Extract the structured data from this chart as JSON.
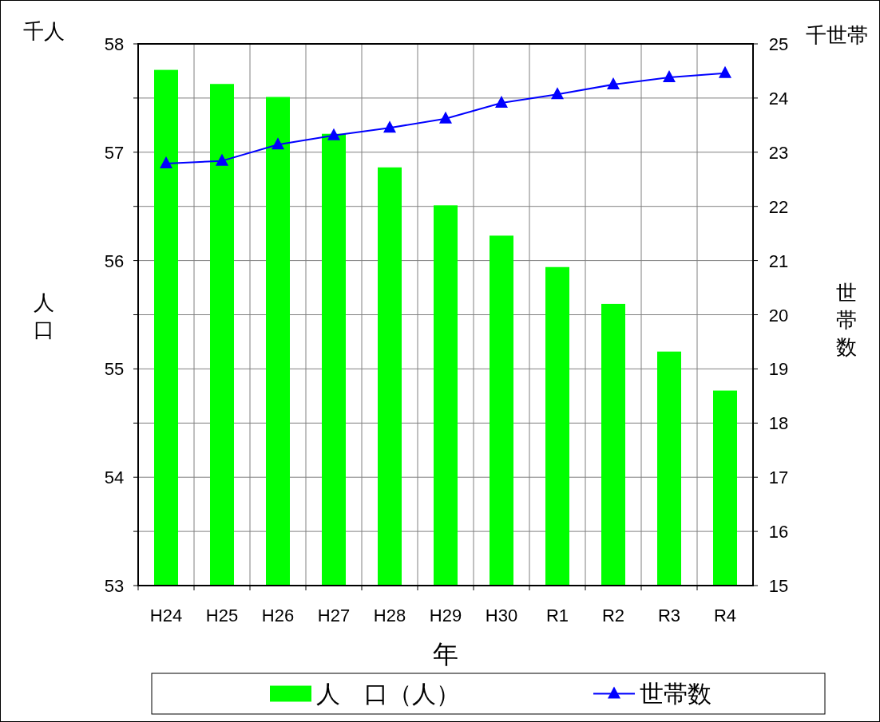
{
  "chart_data": {
    "type": "bar",
    "xlabel": "年",
    "ylabel": "人口",
    "y2label": "世帯数",
    "annotations": [
      "千人",
      "千世帯"
    ],
    "categories": [
      "H24",
      "H25",
      "H26",
      "H27",
      "H28",
      "H29",
      "H30",
      "R1",
      "R2",
      "R3",
      "R4"
    ],
    "series": [
      {
        "name": "人　口（人）",
        "color": "#00ff00",
        "values": [
          57.76,
          57.63,
          57.51,
          57.17,
          56.86,
          56.51,
          56.23,
          55.94,
          55.6,
          55.16,
          54.8
        ]
      },
      {
        "name": "世帯数",
        "type": "line",
        "axis": "y2",
        "color": "#0000ff",
        "marker": "triangle",
        "values": [
          22.79,
          22.84,
          23.14,
          23.31,
          23.45,
          23.62,
          23.91,
          24.07,
          24.25,
          24.38,
          24.46
        ]
      }
    ],
    "ylim": [
      53,
      58
    ],
    "yticks": [
      53,
      {
        "value": 53.5,
        "label": null
      },
      54,
      {
        "value": 54.5,
        "label": null
      },
      55,
      {
        "value": 55.5,
        "label": null
      },
      56,
      {
        "value": 56.5,
        "label": null
      },
      57,
      {
        "value": 57.5,
        "label": null
      },
      58
    ],
    "y2lim": [
      15,
      25
    ],
    "y2ticks": [
      15,
      16,
      17,
      18,
      19,
      20,
      21,
      22,
      23,
      24,
      25
    ],
    "grid": true,
    "legend": "bottom"
  }
}
